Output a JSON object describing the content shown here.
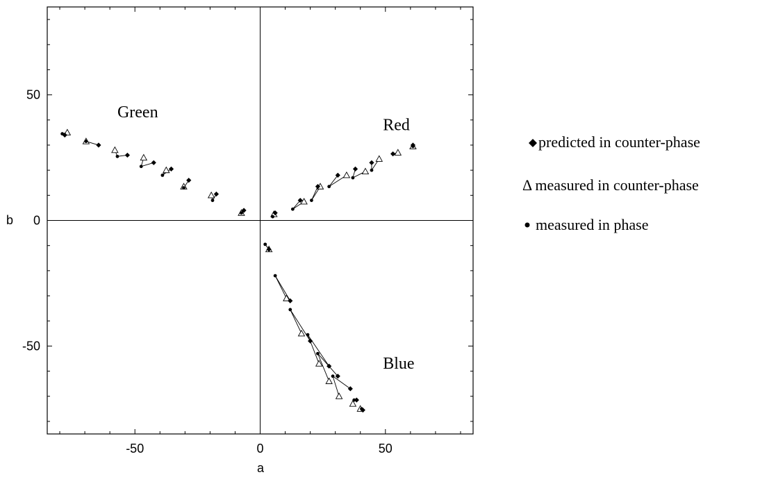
{
  "chart_data": {
    "type": "scatter",
    "xlabel": "a",
    "ylabel": "b",
    "xlim": [
      -85,
      85
    ],
    "ylim": [
      -85,
      85
    ],
    "xticks": [
      -50,
      0,
      50
    ],
    "yticks": [
      50,
      0,
      -50
    ],
    "tick_labels": {
      "x": [
        "-50",
        "0",
        "50"
      ],
      "y": [
        "50",
        "0",
        "-50"
      ]
    },
    "zero_lines": true,
    "grid": false,
    "legend_position": "right",
    "group_labels": [
      {
        "text": "Green",
        "a": -57,
        "b": 41
      },
      {
        "text": "Red",
        "a": 49,
        "b": 36
      },
      {
        "text": "Blue",
        "a": 49,
        "b": -59
      }
    ],
    "legend": [
      {
        "marker": "diamond",
        "symbol": "◆",
        "text": "predicted in counter-phase"
      },
      {
        "marker": "triangle",
        "symbol": "Δ",
        "text": "measured in counter-phase"
      },
      {
        "marker": "dot",
        "symbol": "•",
        "text": "measured in phase"
      }
    ],
    "series": [
      {
        "name": "Green",
        "points": [
          {
            "predicted": [
              -78,
              34
            ],
            "measured_counter": [
              -77,
              35
            ],
            "measured_in_phase": [
              -79,
              34.5
            ]
          },
          {
            "predicted": [
              -64.5,
              30
            ],
            "measured_counter": [
              -69.5,
              31.5
            ],
            "measured_in_phase": [
              -69.5,
              31.5
            ]
          },
          {
            "predicted": [
              -53,
              26
            ],
            "measured_counter": [
              -58,
              28
            ],
            "measured_in_phase": [
              -57,
              25.5
            ]
          },
          {
            "predicted": [
              -42.5,
              23
            ],
            "measured_counter": [
              -46.5,
              25
            ],
            "measured_in_phase": [
              -47.5,
              21.5
            ]
          },
          {
            "predicted": [
              -35.5,
              20.5
            ],
            "measured_counter": [
              -37.5,
              20
            ],
            "measured_in_phase": [
              -39,
              18
            ]
          },
          {
            "predicted": [
              -28.5,
              16
            ],
            "measured_counter": [
              -30.5,
              13.5
            ],
            "measured_in_phase": [
              -30.5,
              13
            ]
          },
          {
            "predicted": [
              -17.5,
              10.5
            ],
            "measured_counter": [
              -19.5,
              10
            ],
            "measured_in_phase": [
              -19,
              8
            ]
          },
          {
            "predicted": [
              -6.5,
              4
            ],
            "measured_counter": [
              -7.5,
              3
            ],
            "measured_in_phase": [
              -7.5,
              3
            ]
          }
        ]
      },
      {
        "name": "Red",
        "points": [
          {
            "predicted": [
              6,
              3
            ],
            "measured_counter": [
              5.5,
              2.5
            ],
            "measured_in_phase": [
              5,
              1.5
            ]
          },
          {
            "predicted": [
              16,
              8
            ],
            "measured_counter": [
              17.5,
              7.5
            ],
            "measured_in_phase": [
              13,
              4.5
            ]
          },
          {
            "predicted": [
              23,
              13.5
            ],
            "measured_counter": [
              24,
              13.5
            ],
            "measured_in_phase": [
              20.5,
              8
            ]
          },
          {
            "predicted": [
              31,
              18
            ],
            "measured_counter": [
              34.5,
              18
            ],
            "measured_in_phase": [
              27.5,
              13.5
            ]
          },
          {
            "predicted": [
              38,
              20.5
            ],
            "measured_counter": [
              42,
              19.5
            ],
            "measured_in_phase": [
              37,
              17
            ]
          },
          {
            "predicted": [
              44.5,
              23
            ],
            "measured_counter": [
              47.5,
              24.5
            ],
            "measured_in_phase": [
              44.5,
              20
            ]
          },
          {
            "predicted": [
              53,
              26.5
            ],
            "measured_counter": [
              55,
              27
            ],
            "measured_in_phase": [
              53,
              26.5
            ]
          },
          {
            "predicted": [
              61,
              30
            ],
            "measured_counter": [
              61,
              29.5
            ],
            "measured_in_phase": [
              61,
              29.5
            ]
          }
        ]
      },
      {
        "name": "Blue",
        "points": [
          {
            "predicted": [
              3.5,
              -11.5
            ],
            "measured_counter": [
              3.5,
              -11.5
            ],
            "measured_in_phase": [
              2,
              -9.5
            ]
          },
          {
            "predicted": [
              12,
              -32
            ],
            "measured_counter": [
              10.5,
              -31
            ],
            "measured_in_phase": [
              6,
              -22
            ]
          },
          {
            "predicted": [
              20,
              -48
            ],
            "measured_counter": [
              16.5,
              -45
            ],
            "measured_in_phase": [
              12,
              -35.5
            ]
          },
          {
            "predicted": [
              27.5,
              -58
            ],
            "measured_counter": [
              23.5,
              -57
            ],
            "measured_in_phase": [
              19,
              -45.5
            ]
          },
          {
            "predicted": [
              31,
              -62
            ],
            "measured_counter": [
              27.5,
              -64
            ],
            "measured_in_phase": [
              23,
              -53
            ]
          },
          {
            "predicted": [
              36,
              -67
            ],
            "measured_counter": [
              31.5,
              -70
            ],
            "measured_in_phase": [
              29,
              -62
            ]
          },
          {
            "predicted": [
              38.5,
              -71.5
            ],
            "measured_counter": [
              37,
              -73
            ],
            "measured_in_phase": [
              37.5,
              -71.5
            ]
          },
          {
            "predicted": [
              41,
              -75.5
            ],
            "measured_counter": [
              40,
              -75
            ],
            "measured_in_phase": [
              40.5,
              -75
            ]
          }
        ]
      }
    ]
  }
}
